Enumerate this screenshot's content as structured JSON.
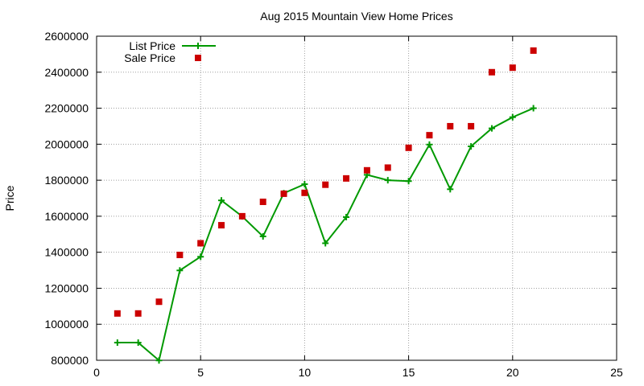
{
  "chart_data": {
    "type": "scatter",
    "title": "Aug 2015 Mountain View Home Prices",
    "xlabel": "",
    "ylabel": "Price",
    "xlim": [
      0,
      25
    ],
    "ylim": [
      800000,
      2600000
    ],
    "x_ticks": [
      0,
      5,
      10,
      15,
      20,
      25
    ],
    "y_ticks": [
      800000,
      1000000,
      1200000,
      1400000,
      1600000,
      1800000,
      2000000,
      2200000,
      2400000,
      2600000
    ],
    "grid": true,
    "legend_position": "top-left",
    "series": [
      {
        "name": "List Price",
        "style": "line-with-plus-markers",
        "color": "#009900",
        "x": [
          1,
          2,
          3,
          4,
          5,
          6,
          7,
          8,
          9,
          10,
          11,
          12,
          13,
          14,
          15,
          16,
          17,
          18,
          19,
          20,
          21
        ],
        "y": [
          898000,
          898000,
          799000,
          1299000,
          1375000,
          1688000,
          1599000,
          1488000,
          1728000,
          1778000,
          1450000,
          1595000,
          1830000,
          1800000,
          1795000,
          1998000,
          1750000,
          1988000,
          2088000,
          2150000,
          2200000
        ]
      },
      {
        "name": "Sale Price",
        "style": "square-markers",
        "color": "#cc0000",
        "x": [
          1,
          2,
          3,
          4,
          5,
          6,
          7,
          8,
          9,
          10,
          11,
          12,
          13,
          14,
          15,
          16,
          17,
          18,
          19,
          20,
          21
        ],
        "y": [
          1060000,
          1060000,
          1125000,
          1385000,
          1450000,
          1550000,
          1600000,
          1680000,
          1725000,
          1730000,
          1775000,
          1810000,
          1855000,
          1870000,
          1980000,
          2050000,
          2100000,
          2100000,
          2400000,
          2425000,
          2520000
        ]
      }
    ]
  }
}
